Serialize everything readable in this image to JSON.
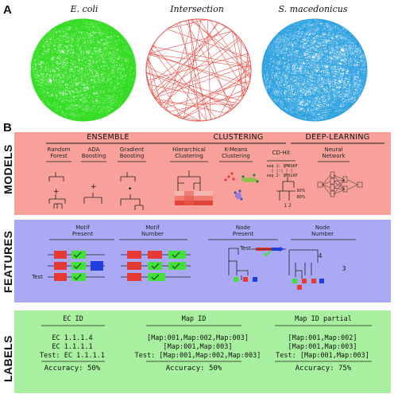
{
  "panels": {
    "a": "A",
    "b": "B"
  },
  "networks": {
    "titles": [
      "E. coli",
      "Intersection",
      "S. macedonicus"
    ],
    "colors": {
      "ecoli": "#33dd22",
      "intersection": "#e8423a",
      "smac": "#2aa0e0"
    }
  },
  "models": {
    "band_label": "MODELS",
    "band_color": "#f7a19a",
    "groups": [
      "ENSEMBLE",
      "CLUSTERING",
      "DEEP-LEARNING"
    ],
    "items": [
      [
        "Random",
        "Forest"
      ],
      [
        "ADA",
        "Boosting"
      ],
      [
        "Gradient",
        "Boosting"
      ],
      [
        "Hierarchical",
        "Clustering"
      ],
      [
        "K-Means",
        "Clustering"
      ],
      [
        "CD-Hit",
        ""
      ],
      [
        "Neural",
        "Network"
      ]
    ],
    "cdhit": {
      "seq1": "seq 1: QMRSKP",
      "mid": "| |:|  | |",
      "seq2": "seq 2: QMSLKP",
      "pct_a": "90%",
      "pct_b": "80%",
      "nums": "1    2"
    }
  },
  "features": {
    "band_label": "FEATURES",
    "band_color": "#a9a9f5",
    "items": [
      [
        "Motif",
        "Present"
      ],
      [
        "Motif",
        "Number"
      ],
      [
        "Node",
        "Present"
      ],
      [
        "Node",
        "Number"
      ]
    ],
    "test_label": "Test",
    "node_numbers": [
      "4",
      "3"
    ]
  },
  "labels": {
    "band_label": "LABELS",
    "band_color": "#a8f0a0",
    "columns": [
      {
        "header": "EC ID",
        "rows": [
          "EC 1.1.1.4",
          "EC 1.1.1.1",
          "Test: EC 1.1.1.1"
        ],
        "accuracy": "Accuracy: 50%"
      },
      {
        "header": "Map ID",
        "rows": [
          "[Map:001,Map:002,Map:003]",
          "[Map:001,Map:003]",
          "Test: [Map:001,Map:002,Map:003]"
        ],
        "accuracy": "Accuracy: 50%"
      },
      {
        "header": "Map ID partial",
        "rows": [
          "[Map:001,Map:002]",
          "[Map:001,Map:003]",
          "Test: [Map:001,Map:003]"
        ],
        "accuracy": "Accuracy: 75%"
      }
    ]
  }
}
